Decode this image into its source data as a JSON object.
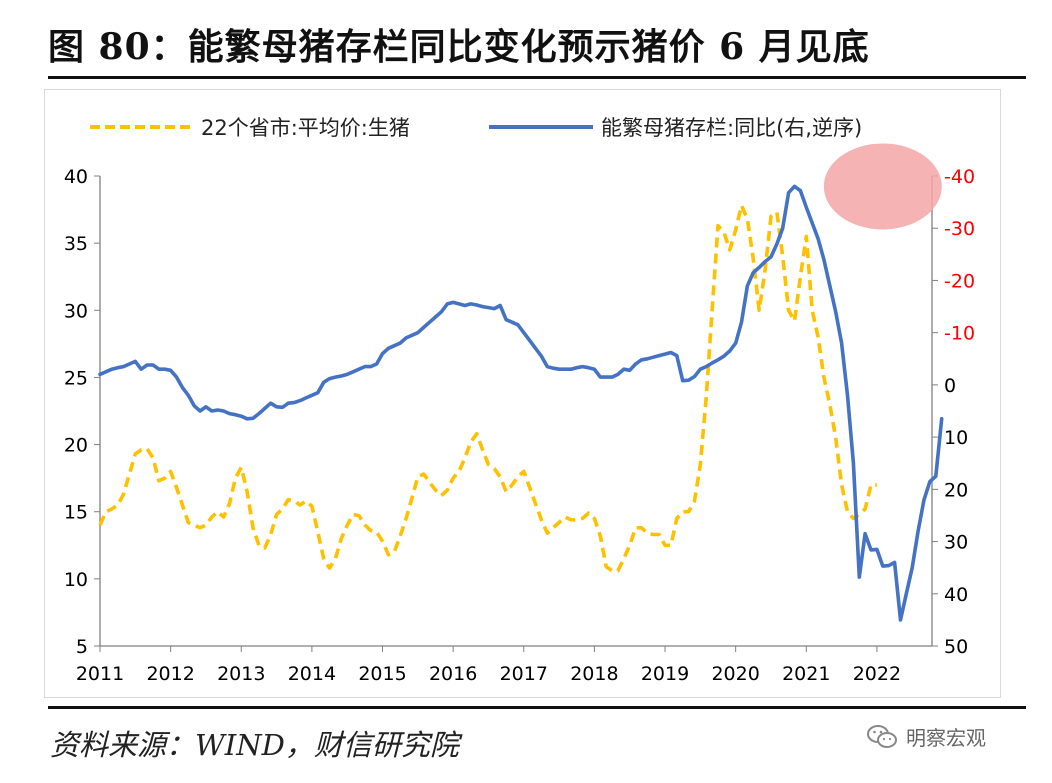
{
  "title": "图 80：能繁母猪存栏同比变化预示猪价 6 月见底",
  "source": "资料来源：WIND，财信研究院",
  "watermark": "明察宏观",
  "chart_data": {
    "type": "line",
    "title": "",
    "x_ticks": [
      "2011",
      "2012",
      "2013",
      "2014",
      "2015",
      "2016",
      "2017",
      "2018",
      "2019",
      "2020",
      "2021",
      "2022"
    ],
    "left_axis": {
      "ylim": [
        5,
        40
      ],
      "ticks": [
        "40",
        "35",
        "30",
        "25",
        "20",
        "15",
        "10",
        "5"
      ],
      "color": "#000000"
    },
    "right_axis": {
      "ylim": [
        -40,
        50
      ],
      "reversed": true,
      "ticks": [
        "-40",
        "-30",
        "-20",
        "-10",
        "0",
        "10",
        "20",
        "30",
        "40",
        "50"
      ],
      "color": "#ff0000"
    },
    "grid": false,
    "legend_position": "top",
    "highlight": {
      "shape": "ellipse",
      "color": "#f4a6a6",
      "center": [
        "2022-02",
        -38
      ]
    },
    "series": [
      {
        "name": "22个省市:平均价:生猪",
        "axis": "left",
        "style": "dashed",
        "color": "#FFC000",
        "points": [
          [
            "2011-01",
            14
          ],
          [
            "2011-02",
            15
          ],
          [
            "2011-03",
            15.2
          ],
          [
            "2011-04",
            15.5
          ],
          [
            "2011-05",
            16.3
          ],
          [
            "2011-06",
            17.8
          ],
          [
            "2011-07",
            19.3
          ],
          [
            "2011-08",
            19.6
          ],
          [
            "2011-09",
            19.7
          ],
          [
            "2011-10",
            19
          ],
          [
            "2011-11",
            17.3
          ],
          [
            "2011-12",
            17.5
          ],
          [
            "2012-01",
            18
          ],
          [
            "2012-02",
            16.8
          ],
          [
            "2012-03",
            15.5
          ],
          [
            "2012-04",
            14.2
          ],
          [
            "2012-05",
            14
          ],
          [
            "2012-06",
            13.8
          ],
          [
            "2012-07",
            14
          ],
          [
            "2012-08",
            14.6
          ],
          [
            "2012-09",
            15
          ],
          [
            "2012-10",
            14.6
          ],
          [
            "2012-11",
            15.6
          ],
          [
            "2012-12",
            17.5
          ],
          [
            "2013-01",
            18.3
          ],
          [
            "2013-02",
            16.5
          ],
          [
            "2013-03",
            13.8
          ],
          [
            "2013-04",
            12.5
          ],
          [
            "2013-05",
            12.3
          ],
          [
            "2013-06",
            13.3
          ],
          [
            "2013-07",
            14.8
          ],
          [
            "2013-08",
            15.2
          ],
          [
            "2013-09",
            15.9
          ],
          [
            "2013-10",
            15.8
          ],
          [
            "2013-11",
            15.5
          ],
          [
            "2013-12",
            15.8
          ],
          [
            "2014-01",
            15.4
          ],
          [
            "2014-02",
            13.5
          ],
          [
            "2014-03",
            11.5
          ],
          [
            "2014-04",
            10.8
          ],
          [
            "2014-05",
            11.5
          ],
          [
            "2014-06",
            13
          ],
          [
            "2014-07",
            14
          ],
          [
            "2014-08",
            14.8
          ],
          [
            "2014-09",
            14.7
          ],
          [
            "2014-10",
            14
          ],
          [
            "2014-11",
            13.6
          ],
          [
            "2014-12",
            13.5
          ],
          [
            "2015-01",
            12.8
          ],
          [
            "2015-02",
            11.8
          ],
          [
            "2015-03",
            12
          ],
          [
            "2015-04",
            13.2
          ],
          [
            "2015-05",
            14.5
          ],
          [
            "2015-06",
            16
          ],
          [
            "2015-07",
            17.6
          ],
          [
            "2015-08",
            17.8
          ],
          [
            "2015-09",
            17.2
          ],
          [
            "2015-10",
            16.6
          ],
          [
            "2015-11",
            16.2
          ],
          [
            "2015-12",
            16.6
          ],
          [
            "2016-01",
            17.5
          ],
          [
            "2016-02",
            18
          ],
          [
            "2016-03",
            19
          ],
          [
            "2016-04",
            20.2
          ],
          [
            "2016-05",
            20.8
          ],
          [
            "2016-06",
            19.6
          ],
          [
            "2016-07",
            18.5
          ],
          [
            "2016-08",
            18.2
          ],
          [
            "2016-09",
            17.6
          ],
          [
            "2016-10",
            16.5
          ],
          [
            "2016-11",
            17
          ],
          [
            "2016-12",
            17.6
          ],
          [
            "2017-01",
            18
          ],
          [
            "2017-02",
            16.8
          ],
          [
            "2017-03",
            15.6
          ],
          [
            "2017-04",
            14.4
          ],
          [
            "2017-05",
            13.4
          ],
          [
            "2017-06",
            13.8
          ],
          [
            "2017-07",
            14.2
          ],
          [
            "2017-08",
            14.6
          ],
          [
            "2017-09",
            14.4
          ],
          [
            "2017-10",
            14.4
          ],
          [
            "2017-11",
            14.5
          ],
          [
            "2017-12",
            14.9
          ],
          [
            "2018-01",
            14.5
          ],
          [
            "2018-02",
            13.2
          ],
          [
            "2018-03",
            10.9
          ],
          [
            "2018-04",
            10.6
          ],
          [
            "2018-05",
            10.6
          ],
          [
            "2018-06",
            11.5
          ],
          [
            "2018-07",
            12.5
          ],
          [
            "2018-08",
            13.8
          ],
          [
            "2018-09",
            13.8
          ],
          [
            "2018-10",
            13.4
          ],
          [
            "2018-11",
            13.3
          ],
          [
            "2018-12",
            13.3
          ],
          [
            "2019-01",
            12.5
          ],
          [
            "2019-02",
            12.5
          ],
          [
            "2019-03",
            14.5
          ],
          [
            "2019-04",
            15
          ],
          [
            "2019-05",
            15
          ],
          [
            "2019-06",
            15.8
          ],
          [
            "2019-07",
            18.5
          ],
          [
            "2019-08",
            23.5
          ],
          [
            "2019-09",
            30
          ],
          [
            "2019-10",
            36.3
          ],
          [
            "2019-11",
            35.8
          ],
          [
            "2019-12",
            34.5
          ],
          [
            "2020-01",
            36
          ],
          [
            "2020-02",
            37.8
          ],
          [
            "2020-03",
            36.8
          ],
          [
            "2020-04",
            33.8
          ],
          [
            "2020-05",
            30
          ],
          [
            "2020-06",
            33
          ],
          [
            "2020-07",
            37
          ],
          [
            "2020-08",
            37.3
          ],
          [
            "2020-09",
            34
          ],
          [
            "2020-10",
            30
          ],
          [
            "2020-11",
            29.2
          ],
          [
            "2020-12",
            32.5
          ],
          [
            "2021-01",
            35.5
          ],
          [
            "2021-02",
            30
          ],
          [
            "2021-03",
            28
          ],
          [
            "2021-04",
            25
          ],
          [
            "2021-05",
            23
          ],
          [
            "2021-06",
            20.5
          ],
          [
            "2021-07",
            17
          ],
          [
            "2021-08",
            15
          ],
          [
            "2021-09",
            14.5
          ],
          [
            "2021-10",
            14.8
          ],
          [
            "2021-11",
            15.2
          ],
          [
            "2021-12",
            17
          ],
          [
            "2022-01",
            17
          ]
        ]
      },
      {
        "name": "能繁母猪存栏:同比(右,逆序)",
        "axis": "right",
        "style": "solid",
        "color": "#4472C4",
        "points": [
          [
            "2011-01",
            -2
          ],
          [
            "2011-02",
            -2.5
          ],
          [
            "2011-03",
            -3
          ],
          [
            "2011-04",
            -3.3
          ],
          [
            "2011-05",
            -3.5
          ],
          [
            "2011-06",
            -4
          ],
          [
            "2011-07",
            -4.5
          ],
          [
            "2011-08",
            -3
          ],
          [
            "2011-09",
            -3.8
          ],
          [
            "2011-10",
            -3.8
          ],
          [
            "2011-11",
            -3
          ],
          [
            "2011-12",
            -3
          ],
          [
            "2012-01",
            -2.8
          ],
          [
            "2012-02",
            -1.5
          ],
          [
            "2012-03",
            0.5
          ],
          [
            "2012-04",
            2
          ],
          [
            "2012-05",
            4
          ],
          [
            "2012-06",
            5
          ],
          [
            "2012-07",
            4.2
          ],
          [
            "2012-08",
            5
          ],
          [
            "2012-09",
            4.8
          ],
          [
            "2012-10",
            5
          ],
          [
            "2012-11",
            5.5
          ],
          [
            "2012-12",
            5.7
          ],
          [
            "2013-01",
            6
          ],
          [
            "2013-02",
            6.5
          ],
          [
            "2013-03",
            6.4
          ],
          [
            "2013-04",
            5.5
          ],
          [
            "2013-05",
            4.5
          ],
          [
            "2013-06",
            3.5
          ],
          [
            "2013-07",
            4.2
          ],
          [
            "2013-08",
            4.3
          ],
          [
            "2013-09",
            3.5
          ],
          [
            "2013-10",
            3.4
          ],
          [
            "2013-11",
            3
          ],
          [
            "2013-12",
            2.5
          ],
          [
            "2014-01",
            2
          ],
          [
            "2014-02",
            1.5
          ],
          [
            "2014-03",
            -0.5
          ],
          [
            "2014-04",
            -1.2
          ],
          [
            "2014-05",
            -1.5
          ],
          [
            "2014-06",
            -1.7
          ],
          [
            "2014-07",
            -2
          ],
          [
            "2014-08",
            -2.5
          ],
          [
            "2014-09",
            -3
          ],
          [
            "2014-10",
            -3.5
          ],
          [
            "2014-11",
            -3.5
          ],
          [
            "2014-12",
            -4
          ],
          [
            "2015-01",
            -6
          ],
          [
            "2015-02",
            -7
          ],
          [
            "2015-03",
            -7.5
          ],
          [
            "2015-04",
            -8
          ],
          [
            "2015-05",
            -9
          ],
          [
            "2015-06",
            -9.5
          ],
          [
            "2015-07",
            -10
          ],
          [
            "2015-08",
            -11
          ],
          [
            "2015-09",
            -12
          ],
          [
            "2015-10",
            -13
          ],
          [
            "2015-11",
            -14
          ],
          [
            "2015-12",
            -15.5
          ],
          [
            "2016-01",
            -15.8
          ],
          [
            "2016-02",
            -15.5
          ],
          [
            "2016-03",
            -15.2
          ],
          [
            "2016-04",
            -15.5
          ],
          [
            "2016-05",
            -15.3
          ],
          [
            "2016-06",
            -15
          ],
          [
            "2016-07",
            -14.8
          ],
          [
            "2016-08",
            -14.6
          ],
          [
            "2016-09",
            -15.2
          ],
          [
            "2016-10",
            -12.5
          ],
          [
            "2016-11",
            -12
          ],
          [
            "2016-12",
            -11.5
          ],
          [
            "2017-01",
            -10
          ],
          [
            "2017-02",
            -8.5
          ],
          [
            "2017-03",
            -7
          ],
          [
            "2017-04",
            -5.5
          ],
          [
            "2017-05",
            -3.5
          ],
          [
            "2017-06",
            -3.2
          ],
          [
            "2017-07",
            -3
          ],
          [
            "2017-08",
            -3
          ],
          [
            "2017-09",
            -3
          ],
          [
            "2017-10",
            -3.3
          ],
          [
            "2017-11",
            -3.5
          ],
          [
            "2017-12",
            -3.3
          ],
          [
            "2018-01",
            -3
          ],
          [
            "2018-02",
            -1.5
          ],
          [
            "2018-03",
            -1.5
          ],
          [
            "2018-04",
            -1.5
          ],
          [
            "2018-05",
            -2
          ],
          [
            "2018-06",
            -3
          ],
          [
            "2018-07",
            -2.8
          ],
          [
            "2018-08",
            -4
          ],
          [
            "2018-09",
            -4.8
          ],
          [
            "2018-10",
            -5
          ],
          [
            "2018-11",
            -5.3
          ],
          [
            "2018-12",
            -5.6
          ],
          [
            "2019-01",
            -5.9
          ],
          [
            "2019-02",
            -6.2
          ],
          [
            "2019-03",
            -5.6
          ],
          [
            "2019-04",
            -0.8
          ],
          [
            "2019-05",
            -0.9
          ],
          [
            "2019-06",
            -1.6
          ],
          [
            "2019-07",
            -3
          ],
          [
            "2019-08",
            -3.5
          ],
          [
            "2019-09",
            -4.2
          ],
          [
            "2019-10",
            -4.8
          ],
          [
            "2019-11",
            -5.5
          ],
          [
            "2019-12",
            -6.5
          ],
          [
            "2020-01",
            -8
          ],
          [
            "2020-02",
            -12
          ],
          [
            "2020-03",
            -19
          ],
          [
            "2020-04",
            -21.5
          ],
          [
            "2020-05",
            -22.5
          ],
          [
            "2020-06",
            -23.6
          ],
          [
            "2020-07",
            -24.5
          ],
          [
            "2020-08",
            -27
          ],
          [
            "2020-09",
            -30
          ],
          [
            "2020-10",
            -36.8
          ],
          [
            "2020-11",
            -38
          ],
          [
            "2020-12",
            -37.2
          ],
          [
            "2021-01",
            -34
          ],
          [
            "2021-02",
            -31
          ],
          [
            "2021-03",
            -28
          ],
          [
            "2021-04",
            -24
          ],
          [
            "2021-05",
            -19
          ],
          [
            "2021-06",
            -14
          ],
          [
            "2021-07",
            -8
          ],
          [
            "2021-08",
            2
          ],
          [
            "2021-09",
            15
          ],
          [
            "2021-10",
            36.8
          ],
          [
            "2021-11",
            28.5
          ],
          [
            "2021-12",
            31.6
          ],
          [
            "2022-01",
            31.5
          ],
          [
            "2022-02",
            34.7
          ],
          [
            "2022-03",
            34.6
          ],
          [
            "2022-04",
            34
          ],
          [
            "2022-05",
            45
          ],
          [
            "2022-06",
            40
          ],
          [
            "2022-07",
            35
          ],
          [
            "2022-08",
            28
          ],
          [
            "2022-09",
            22
          ],
          [
            "2022-10",
            18.5
          ],
          [
            "2022-11",
            17.5
          ],
          [
            "2022-12",
            6.5
          ]
        ]
      }
    ]
  }
}
